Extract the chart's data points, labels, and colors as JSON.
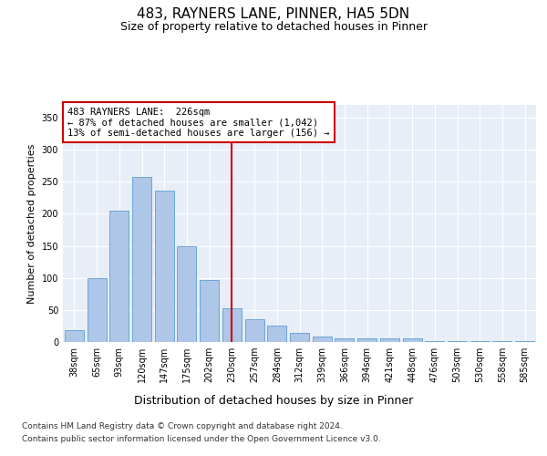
{
  "title1": "483, RAYNERS LANE, PINNER, HA5 5DN",
  "title2": "Size of property relative to detached houses in Pinner",
  "xlabel": "Distribution of detached houses by size in Pinner",
  "ylabel": "Number of detached properties",
  "categories": [
    "38sqm",
    "65sqm",
    "93sqm",
    "120sqm",
    "147sqm",
    "175sqm",
    "202sqm",
    "230sqm",
    "257sqm",
    "284sqm",
    "312sqm",
    "339sqm",
    "366sqm",
    "394sqm",
    "421sqm",
    "448sqm",
    "476sqm",
    "503sqm",
    "530sqm",
    "558sqm",
    "585sqm"
  ],
  "values": [
    18,
    100,
    205,
    257,
    236,
    149,
    97,
    52,
    35,
    26,
    14,
    8,
    6,
    5,
    5,
    5,
    2,
    1,
    2,
    1,
    1
  ],
  "bar_color": "#aec6e8",
  "bar_edgecolor": "#5a9fd4",
  "annotation_line1": "483 RAYNERS LANE:  226sqm",
  "annotation_line2": "← 87% of detached houses are smaller (1,042)",
  "annotation_line3": "13% of semi-detached houses are larger (156) →",
  "annotation_box_color": "#ffffff",
  "annotation_box_edgecolor": "#cc0000",
  "vline_color": "#cc0000",
  "ylim": [
    0,
    370
  ],
  "yticks": [
    0,
    50,
    100,
    150,
    200,
    250,
    300,
    350
  ],
  "footnote1": "Contains HM Land Registry data © Crown copyright and database right 2024.",
  "footnote2": "Contains public sector information licensed under the Open Government Licence v3.0.",
  "bg_color": "#e8eef8",
  "fig_bg_color": "#ffffff",
  "title1_fontsize": 11,
  "title2_fontsize": 9,
  "xlabel_fontsize": 9,
  "ylabel_fontsize": 8,
  "tick_fontsize": 7,
  "footnote_fontsize": 6.5,
  "annotation_fontsize": 7.5
}
